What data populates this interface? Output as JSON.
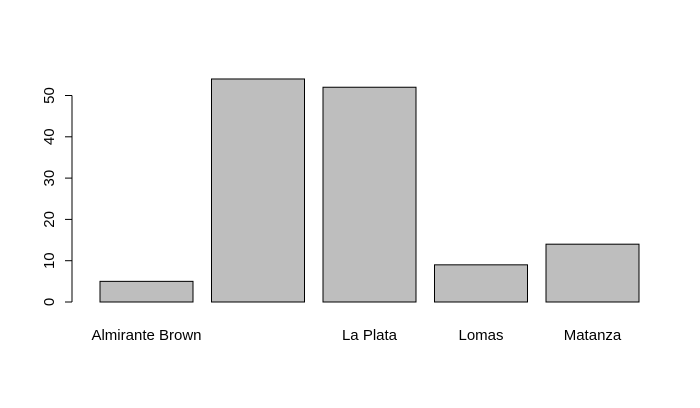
{
  "chart_data": {
    "type": "bar",
    "title": "",
    "xlabel": "",
    "ylabel": "",
    "categories": [
      "Almirante Brown",
      "",
      "La Plata",
      "Lomas",
      "Matanza"
    ],
    "values": [
      5,
      54,
      52,
      9,
      14
    ],
    "ylim": [
      0,
      54
    ],
    "yticks": [
      0,
      10,
      20,
      30,
      40,
      50
    ],
    "grid": false,
    "bar_fill": "#bebebe",
    "bar_stroke": "#000000",
    "background": "#ffffff"
  }
}
